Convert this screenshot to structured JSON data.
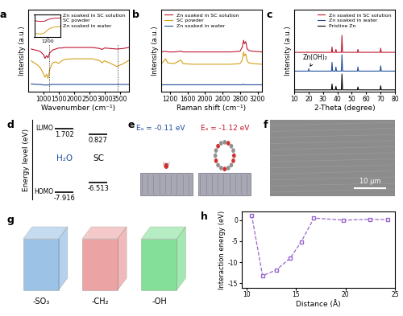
{
  "chart_data": [
    {
      "type": "line",
      "title": "a",
      "xlabel": "Wavenumber (cm⁻¹)",
      "ylabel": "Intensity (a.u.)",
      "x": [
        600,
        800,
        900,
        1000,
        1050,
        1100,
        1150,
        1200,
        1250,
        1300,
        1400,
        1500,
        1600,
        1700,
        2000,
        2300,
        2600,
        2850,
        2920,
        3000,
        3200,
        3400,
        3600,
        3800
      ],
      "series": [
        {
          "name": "Zn soaked in SC solution",
          "color": "#c0152f",
          "values": [
            8.3,
            8.0,
            7.8,
            7.2,
            6.5,
            7.0,
            6.6,
            7.5,
            7.8,
            8.1,
            8.3,
            8.5,
            8.5,
            8.6,
            8.6,
            8.6,
            8.6,
            8.4,
            8.2,
            8.5,
            8.4,
            8.3,
            8.4,
            8.6
          ]
        },
        {
          "name": "SC powder",
          "color": "#d4a017",
          "values": [
            6.0,
            5.2,
            4.6,
            3.5,
            2.8,
            3.4,
            2.6,
            4.2,
            5.0,
            5.6,
            5.8,
            5.5,
            6.0,
            6.3,
            6.4,
            6.4,
            6.4,
            6.0,
            5.6,
            6.0,
            5.5,
            4.9,
            5.4,
            6.1
          ]
        },
        {
          "name": "Zn soaked in water",
          "color": "#1f4e9a",
          "values": [
            1.5,
            1.4,
            1.4,
            1.3,
            1.3,
            1.3,
            1.3,
            1.3,
            1.4,
            1.4,
            1.4,
            1.4,
            1.4,
            1.4,
            1.4,
            1.4,
            1.4,
            1.4,
            1.4,
            1.4,
            1.4,
            1.4,
            1.4,
            1.4
          ]
        }
      ],
      "xlim": [
        500,
        3800
      ],
      "xticks": [
        1000,
        1500,
        2000,
        2500,
        3000,
        3500
      ],
      "ylim": [
        0,
        16
      ],
      "yticks": [],
      "tick_labels": "x",
      "legend": "upper right",
      "reference_lines": [
        1190,
        3430
      ],
      "inset": {
        "x": [
          1150,
          1175,
          1190,
          1200,
          1210,
          1225,
          1250
        ],
        "series": [
          {
            "color": "#c0152f",
            "values": [
              7.0,
              6.8,
              6.9,
              7.3,
              7.6,
              7.8,
              7.9
            ]
          },
          {
            "color": "#d4a017",
            "values": [
              3.0,
              2.8,
              3.2,
              4.0,
              4.6,
              5.0,
              5.2
            ]
          }
        ],
        "xlim": [
          1150,
          1250
        ],
        "xticks": [
          1200
        ],
        "ylim": [
          2,
          9
        ],
        "yticks": []
      }
    },
    {
      "type": "line",
      "title": "b",
      "xlabel": "Raman shift (cm⁻¹)",
      "ylabel": "Intensity (a.u.)",
      "x": [
        1000,
        1100,
        1150,
        1300,
        1440,
        1460,
        1500,
        1700,
        2000,
        2300,
        2600,
        2800,
        2850,
        2880,
        2900,
        2930,
        2960,
        3000,
        3100,
        3300
      ],
      "series": [
        {
          "name": "Zn soaked in SC solution",
          "color": "#c0152f",
          "values": [
            5.8,
            5.9,
            5.8,
            5.8,
            5.9,
            5.9,
            5.8,
            5.8,
            5.8,
            5.8,
            5.8,
            5.9,
            6.5,
            7.5,
            7.0,
            7.3,
            6.3,
            6.0,
            5.9,
            5.8
          ]
        },
        {
          "name": "SC powder",
          "color": "#d4a017",
          "values": [
            4.0,
            4.8,
            4.2,
            4.1,
            4.6,
            4.5,
            4.1,
            4.0,
            4.0,
            4.0,
            4.0,
            4.1,
            4.6,
            5.8,
            5.2,
            5.5,
            4.5,
            4.2,
            4.1,
            4.0
          ]
        },
        {
          "name": "Zn soaked in water",
          "color": "#1f4e9a",
          "values": [
            1.0,
            1.0,
            1.0,
            1.0,
            1.0,
            1.0,
            1.0,
            1.0,
            1.0,
            1.0,
            1.0,
            1.0,
            1.0,
            1.1,
            1.0,
            1.0,
            1.0,
            1.0,
            1.0,
            1.0
          ]
        }
      ],
      "xlim": [
        1000,
        3300
      ],
      "xticks": [
        1200,
        1600,
        2000,
        2400,
        2800,
        3200
      ],
      "ylim": [
        0,
        12
      ],
      "yticks": [],
      "tick_labels": "x",
      "legend": "upper left"
    },
    {
      "type": "line",
      "title": "c",
      "xlabel": "2-Theta (degree)",
      "ylabel": "Intensity (a.u.)",
      "x": [
        10,
        19.7,
        20.1,
        20.5,
        35.9,
        36.3,
        36.7,
        38.6,
        39.0,
        39.4,
        42.8,
        43.2,
        43.6,
        53.9,
        54.3,
        54.7,
        69.7,
        70.1,
        70.5,
        80
      ],
      "series": [
        {
          "name": "Zn soaked in SC solution",
          "color": "#c0152f",
          "values": [
            6.7,
            6.7,
            6.7,
            6.7,
            6.7,
            7.6,
            6.7,
            6.7,
            7.2,
            6.7,
            6.7,
            9.6,
            6.7,
            6.7,
            7.2,
            6.7,
            6.7,
            7.4,
            6.7,
            6.7
          ]
        },
        {
          "name": "Zn soaked in water",
          "color": "#1f4e9a",
          "values": [
            3.5,
            3.5,
            3.9,
            3.5,
            3.5,
            5.0,
            3.5,
            3.5,
            4.2,
            3.5,
            3.5,
            6.3,
            3.5,
            3.5,
            4.2,
            3.5,
            3.5,
            4.4,
            3.5,
            3.5
          ]
        },
        {
          "name": "Pristine Zn",
          "color": "#000000",
          "values": [
            0.3,
            0.3,
            0.3,
            0.3,
            0.3,
            1.3,
            0.3,
            0.3,
            0.9,
            0.3,
            0.3,
            3.0,
            0.3,
            0.3,
            0.8,
            0.3,
            0.3,
            1.0,
            0.3,
            0.3
          ]
        }
      ],
      "xlim": [
        10,
        80
      ],
      "xticks": [
        10,
        20,
        30,
        40,
        50,
        60,
        70,
        80
      ],
      "ylim": [
        0,
        14
      ],
      "yticks": [],
      "tick_labels": "x",
      "legend": "upper right",
      "annotation": {
        "text": "Zn(OH)₂",
        "x": 20.1,
        "y": 3.9
      }
    },
    {
      "type": "energy_level",
      "title": "d",
      "ylabel": "Energy level (eV)",
      "tick_labels": false,
      "ylim": [
        -9,
        3
      ],
      "yticks": [],
      "groups": [
        {
          "name": "H₂O",
          "levels": [
            {
              "label": "LUMO",
              "value": 1.702
            },
            {
              "label": "HOMO",
              "value": -7.916
            }
          ]
        },
        {
          "name": "SC",
          "levels": [
            {
              "value": 0.827
            },
            {
              "value": -6.513
            }
          ]
        }
      ]
    },
    {
      "type": "diagram",
      "title": "e",
      "texts": [
        "Eₐ = -0.11 eV",
        "Eₐ = -1.12 eV"
      ],
      "colors": [
        "#1f4e9a",
        "#c0152f"
      ]
    },
    {
      "type": "image",
      "title": "f",
      "scale_bar": "10 μm"
    },
    {
      "type": "diagram",
      "title": "g",
      "labels": [
        "-SO₃",
        "-CH₂",
        "-OH"
      ],
      "colors": [
        "#5b9bd5",
        "#e06666",
        "#33cc55"
      ]
    },
    {
      "type": "line",
      "title": "h",
      "xlabel": "Distance (Å)",
      "ylabel": "Interaction energy (eV)",
      "x": [
        10.5,
        11.6,
        13.0,
        14.4,
        15.5,
        16.8,
        19.8,
        22.5,
        24.3
      ],
      "values": [
        1.2,
        -13.2,
        -11.8,
        -9.0,
        -5.2,
        0.5,
        0.0,
        0.2,
        0.1
      ],
      "color": "#9966cc",
      "marker": "square",
      "line_style": "dashed",
      "xlim": [
        9.5,
        25
      ],
      "xticks": [
        10,
        15,
        20,
        25
      ],
      "ylim": [
        -16,
        2
      ],
      "yticks": [
        -15,
        -10,
        -5,
        0
      ]
    }
  ]
}
